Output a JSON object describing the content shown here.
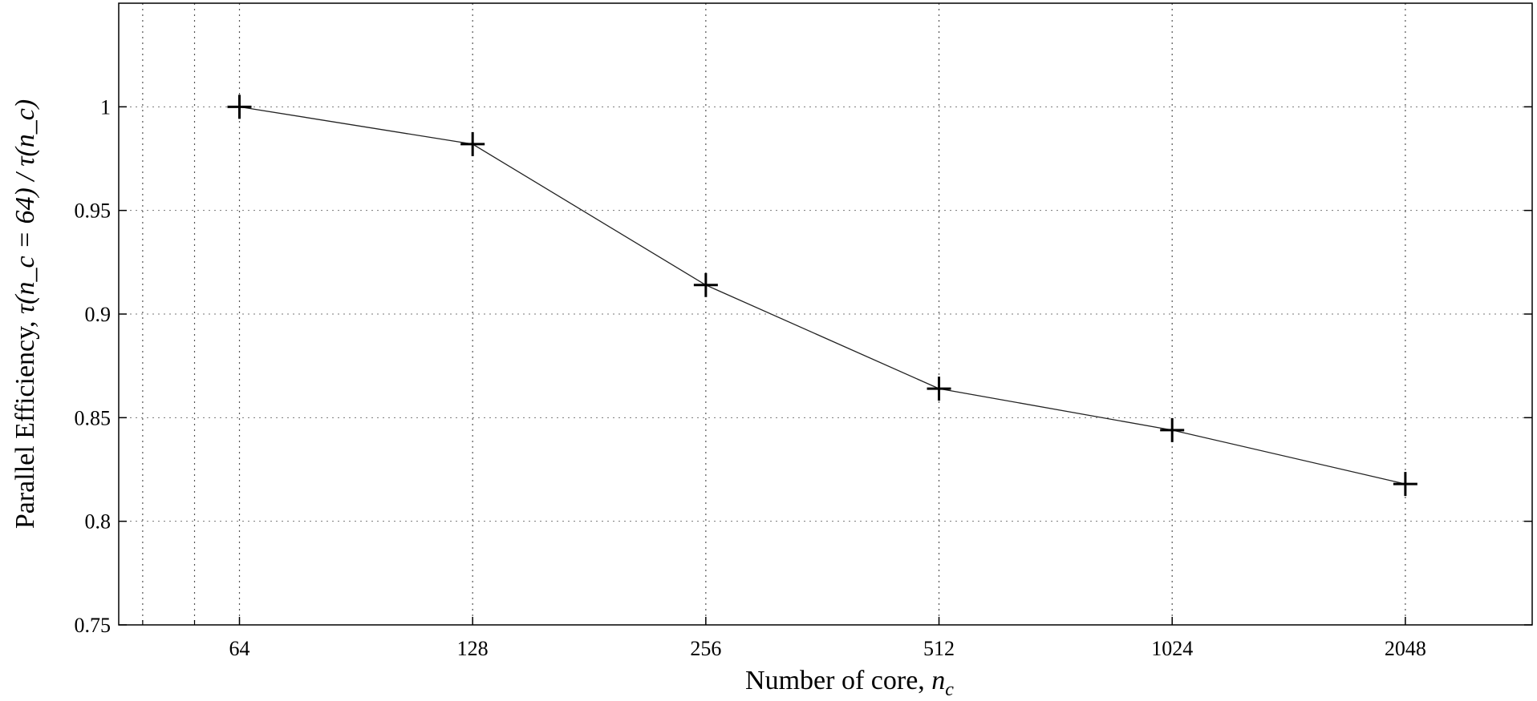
{
  "chart_data": {
    "type": "line",
    "title": "",
    "xlabel": "Number of core, ",
    "xlabel_math": "n",
    "xlabel_math_sub": "c",
    "ylabel": "Parallel Efficiency, ",
    "ylabel_math": "τ(n_c = 64) / τ(n_c)",
    "x_scale": "log2",
    "categories": [
      "64",
      "128",
      "256",
      "512",
      "1024",
      "2048"
    ],
    "x": [
      64,
      128,
      256,
      512,
      1024,
      2048
    ],
    "series": [
      {
        "values": [
          1.0,
          0.982,
          0.914,
          0.864,
          0.844,
          0.818
        ],
        "marker": "plus",
        "color": "#000000"
      }
    ],
    "y_ticks": [
      "0.75",
      "0.8",
      "0.85",
      "0.9",
      "0.95",
      "1"
    ],
    "y_tick_values": [
      0.75,
      0.8,
      0.85,
      0.9,
      0.95,
      1.0
    ],
    "ylim": [
      0.75,
      1.05
    ],
    "xlim": [
      44.7,
      2986
    ],
    "grid": true,
    "legend": "none"
  }
}
